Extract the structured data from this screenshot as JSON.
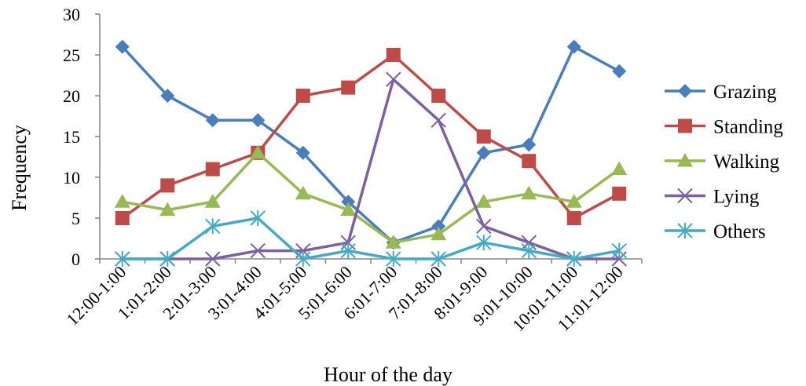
{
  "chart_data": {
    "type": "line",
    "xlabel": "Hour of the day",
    "ylabel": "Frequency",
    "ylim": [
      0,
      30
    ],
    "yticks": [
      0,
      5,
      10,
      15,
      20,
      25,
      30
    ],
    "grid": false,
    "legend_position": "right",
    "categories": [
      "12:00-1:00",
      "1:01-2:00",
      "2:01-3:00",
      "3:01-4:00",
      "4:01-5:00",
      "5:01-6:00",
      "6:01-7:00",
      "7:01-8:00",
      "8:01-9:00",
      "9:01-10:00",
      "10:01-11:00",
      "11:01-12:00"
    ],
    "series": [
      {
        "name": "Grazing",
        "color": "#4A7EBB",
        "marker": "diamond",
        "values": [
          26,
          20,
          17,
          17,
          13,
          7,
          2,
          4,
          13,
          14,
          26,
          23
        ]
      },
      {
        "name": "Standing",
        "color": "#BE4B48",
        "marker": "square",
        "values": [
          5,
          9,
          11,
          13,
          20,
          21,
          25,
          20,
          15,
          12,
          5,
          8
        ]
      },
      {
        "name": "Walking",
        "color": "#98B954",
        "marker": "triangle",
        "values": [
          7,
          6,
          7,
          13,
          8,
          6,
          2,
          3,
          7,
          8,
          7,
          11
        ]
      },
      {
        "name": "Lying",
        "color": "#7D60A0",
        "marker": "x",
        "values": [
          0,
          0,
          0,
          1,
          1,
          2,
          22,
          17,
          4,
          2,
          0,
          0
        ]
      },
      {
        "name": "Others",
        "color": "#46AAC5",
        "marker": "asterisk",
        "values": [
          0,
          0,
          4,
          5,
          0,
          1,
          0,
          0,
          2,
          1,
          0,
          1
        ]
      }
    ]
  }
}
